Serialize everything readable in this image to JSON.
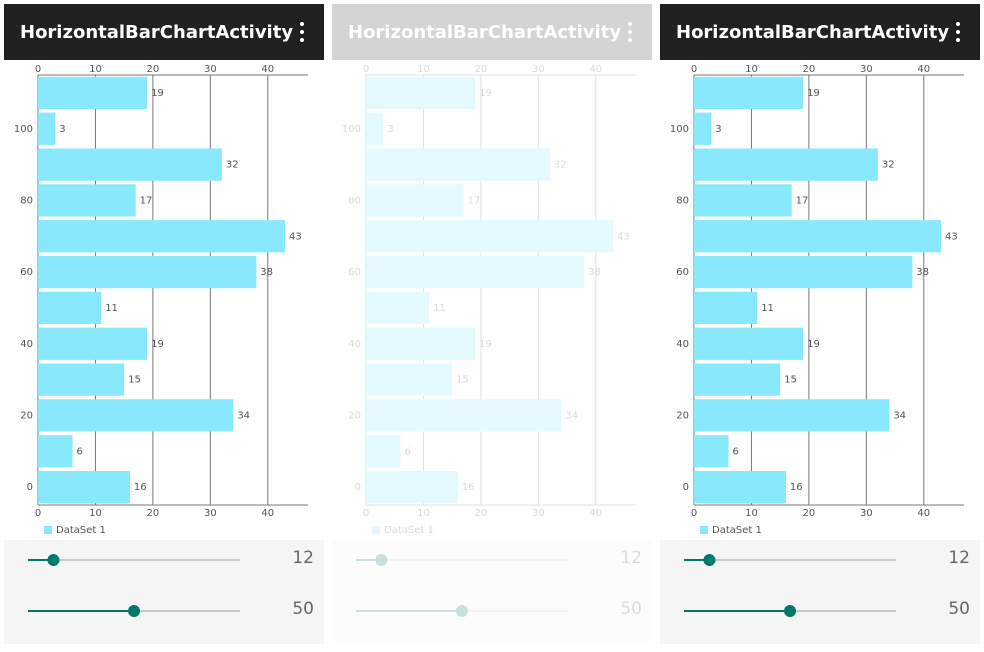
{
  "app": {
    "title": "HorizontalBarChartActivity",
    "sliders": [
      {
        "value": 12,
        "range": [
          0,
          100
        ]
      },
      {
        "value": 50,
        "range": [
          0,
          100
        ]
      }
    ]
  },
  "chart_data": {
    "type": "bar",
    "orientation": "horizontal",
    "x": [
      0,
      10,
      20,
      30,
      40,
      50,
      60,
      70,
      80,
      90,
      100,
      110
    ],
    "series": [
      {
        "name": "DataSet 1",
        "color": "#87e9fb",
        "values": [
          16,
          6,
          34,
          15,
          19,
          11,
          38,
          43,
          17,
          32,
          3,
          19
        ]
      }
    ],
    "bar_width": 9,
    "xlim": [
      -5,
      115
    ],
    "xticks": [
      0,
      20,
      40,
      60,
      80,
      100
    ],
    "ylim": [
      0,
      47
    ],
    "yticks": [
      0,
      10,
      20,
      30,
      40
    ],
    "grid": true,
    "legend": "bottom-left"
  }
}
